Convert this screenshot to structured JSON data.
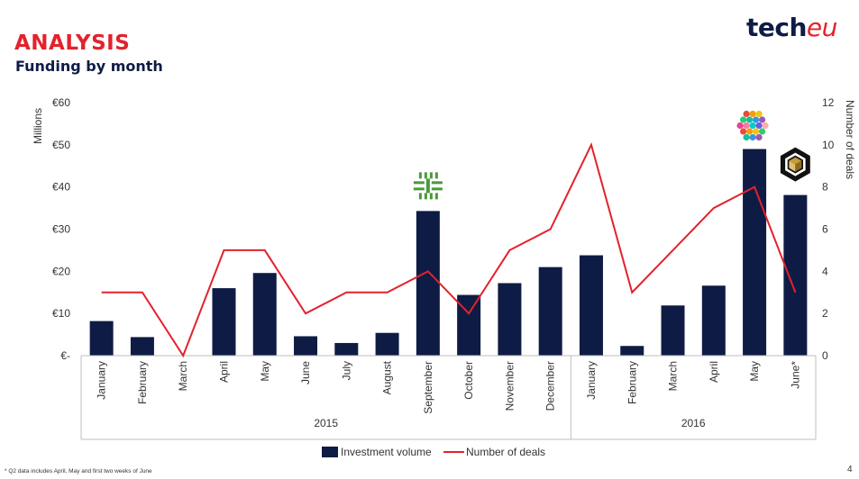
{
  "header": {
    "title": "ANALYSIS",
    "subtitle": "Funding by month",
    "logo_text_a": "tech",
    "logo_text_b": "eu"
  },
  "footnote": "* Q2 data includes April, May and first two weeks of June",
  "page_number": "4",
  "colors": {
    "bar": "#0e1c45",
    "line": "#e3222c",
    "title": "#e3222c",
    "subtitle": "#0e1c45"
  },
  "chart_data": {
    "type": "bar",
    "categories": [
      "January",
      "February",
      "March",
      "April",
      "May",
      "June",
      "July",
      "August",
      "September",
      "October",
      "November",
      "December",
      "January",
      "February",
      "March",
      "April",
      "May",
      "June*"
    ],
    "groups": [
      {
        "label": "2015",
        "start": 0,
        "end": 11
      },
      {
        "label": "2016",
        "start": 12,
        "end": 17
      }
    ],
    "series": [
      {
        "name": "Investment volume",
        "type": "bar",
        "axis": "left",
        "values": [
          8.2,
          4.4,
          0,
          16,
          19.6,
          4.6,
          3,
          5.4,
          34.3,
          14.4,
          17.2,
          21,
          23.8,
          2.3,
          11.9,
          16.6,
          49,
          38.1
        ]
      },
      {
        "name": "Number of deals",
        "type": "line",
        "axis": "right",
        "values": [
          3,
          3,
          0,
          5,
          5,
          2,
          3,
          3,
          4,
          2,
          5,
          6,
          10,
          3,
          5,
          7,
          8,
          3
        ]
      }
    ],
    "left_axis": {
      "label": "Millions",
      "ylim": [
        0,
        60
      ],
      "ticks": [
        "€-",
        "€10",
        "€20",
        "€30",
        "€40",
        "€50",
        "€60"
      ]
    },
    "right_axis": {
      "label": "Number of deals",
      "ylim": [
        0,
        12
      ],
      "ticks": [
        "0",
        "2",
        "4",
        "6",
        "8",
        "10",
        "12"
      ]
    },
    "legend_position": "bottom",
    "grid": false,
    "annotations": [
      {
        "index": 8,
        "icon": "green-cross-logo-icon"
      },
      {
        "index": 16,
        "icon": "colorful-hexagon-logo-icon"
      },
      {
        "index": 17,
        "icon": "black-cube-logo-icon"
      }
    ]
  }
}
